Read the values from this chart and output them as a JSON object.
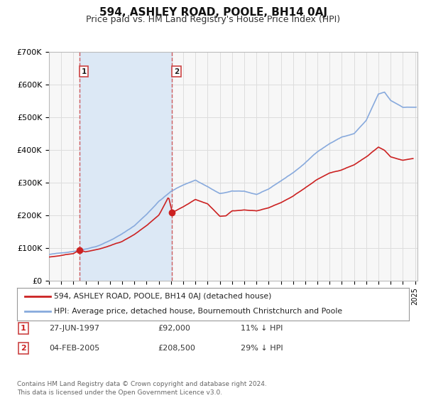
{
  "title": "594, ASHLEY ROAD, POOLE, BH14 0AJ",
  "subtitle": "Price paid vs. HM Land Registry's House Price Index (HPI)",
  "ylim": [
    0,
    700000
  ],
  "yticks": [
    0,
    100000,
    200000,
    300000,
    400000,
    500000,
    600000,
    700000
  ],
  "ytick_labels": [
    "£0",
    "£100K",
    "£200K",
    "£300K",
    "£400K",
    "£500K",
    "£600K",
    "£700K"
  ],
  "xlim_start": 1995.0,
  "xlim_end": 2025.2,
  "fig_bg_color": "#ffffff",
  "plot_bg_color": "#f7f7f7",
  "grid_color": "#dddddd",
  "shade_color": "#dce8f5",
  "sale1_date": 1997.49,
  "sale1_price": 92000,
  "sale1_label": "1",
  "sale2_date": 2005.09,
  "sale2_price": 208500,
  "sale2_label": "2",
  "legend_line1": "594, ASHLEY ROAD, POOLE, BH14 0AJ (detached house)",
  "legend_line2": "HPI: Average price, detached house, Bournemouth Christchurch and Poole",
  "table_row1": [
    "1",
    "27-JUN-1997",
    "£92,000",
    "11% ↓ HPI"
  ],
  "table_row2": [
    "2",
    "04-FEB-2005",
    "£208,500",
    "29% ↓ HPI"
  ],
  "footer": "Contains HM Land Registry data © Crown copyright and database right 2024.\nThis data is licensed under the Open Government Licence v3.0.",
  "red_color": "#cc2222",
  "blue_color": "#88aadd",
  "dashed_color": "#cc4444",
  "title_fontsize": 11,
  "subtitle_fontsize": 9,
  "tick_fontsize": 8
}
